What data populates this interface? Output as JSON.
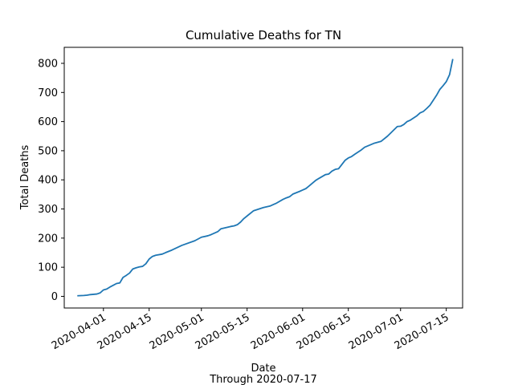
{
  "chart_data": {
    "type": "line",
    "title": "Cumulative Deaths for TN",
    "xlabel": "Date",
    "xlabel_sub": "Through 2020-07-17",
    "ylabel": "Total Deaths",
    "ylim": [
      -40,
      855
    ],
    "yticks": [
      0,
      100,
      200,
      300,
      400,
      500,
      600,
      700,
      800
    ],
    "xlim": [
      "2020-03-20",
      "2020-07-20"
    ],
    "xticks": [
      "2020-04-01",
      "2020-04-15",
      "2020-05-01",
      "2020-05-15",
      "2020-06-01",
      "2020-06-15",
      "2020-07-01",
      "2020-07-15"
    ],
    "grid": false,
    "line_color": "#1f77b4",
    "series": [
      {
        "x": [
          "2020-03-24",
          "2020-03-26",
          "2020-03-27",
          "2020-03-28",
          "2020-03-30",
          "2020-03-31",
          "2020-04-01",
          "2020-04-02",
          "2020-04-03",
          "2020-04-04",
          "2020-04-05",
          "2020-04-06",
          "2020-04-07",
          "2020-04-08",
          "2020-04-09",
          "2020-04-10",
          "2020-04-11",
          "2020-04-12",
          "2020-04-13",
          "2020-04-14",
          "2020-04-15",
          "2020-04-16",
          "2020-04-17",
          "2020-04-19",
          "2020-04-20",
          "2020-04-22",
          "2020-04-25",
          "2020-04-29",
          "2020-05-01",
          "2020-05-03",
          "2020-05-04",
          "2020-05-06",
          "2020-05-07",
          "2020-05-10",
          "2020-05-11",
          "2020-05-12",
          "2020-05-13",
          "2020-05-14",
          "2020-05-15",
          "2020-05-17",
          "2020-05-20",
          "2020-05-22",
          "2020-05-23",
          "2020-05-24",
          "2020-05-26",
          "2020-05-27",
          "2020-05-28",
          "2020-05-29",
          "2020-05-31",
          "2020-06-01",
          "2020-06-02",
          "2020-06-03",
          "2020-06-05",
          "2020-06-06",
          "2020-06-08",
          "2020-06-09",
          "2020-06-10",
          "2020-06-11",
          "2020-06-12",
          "2020-06-14",
          "2020-06-15",
          "2020-06-16",
          "2020-06-17",
          "2020-06-19",
          "2020-06-20",
          "2020-06-23",
          "2020-06-25",
          "2020-06-27",
          "2020-06-29",
          "2020-06-30",
          "2020-07-01",
          "2020-07-02",
          "2020-07-03",
          "2020-07-04",
          "2020-07-06",
          "2020-07-07",
          "2020-07-08",
          "2020-07-09",
          "2020-07-10",
          "2020-07-12",
          "2020-07-13",
          "2020-07-14",
          "2020-07-15",
          "2020-07-16",
          "2020-07-17"
        ],
        "y": [
          2,
          3,
          4,
          6,
          8,
          12,
          22,
          25,
          32,
          38,
          44,
          46,
          65,
          72,
          80,
          94,
          98,
          101,
          103,
          112,
          128,
          137,
          141,
          145,
          150,
          159,
          175,
          191,
          203,
          208,
          212,
          222,
          232,
          240,
          242,
          246,
          255,
          267,
          276,
          294,
          305,
          310,
          315,
          320,
          333,
          338,
          342,
          351,
          360,
          365,
          370,
          379,
          398,
          405,
          418,
          420,
          430,
          436,
          438,
          467,
          475,
          480,
          488,
          503,
          512,
          526,
          532,
          550,
          572,
          583,
          584,
          590,
          600,
          605,
          620,
          630,
          635,
          645,
          656,
          690,
          710,
          723,
          737,
          761,
          815
        ]
      }
    ]
  }
}
